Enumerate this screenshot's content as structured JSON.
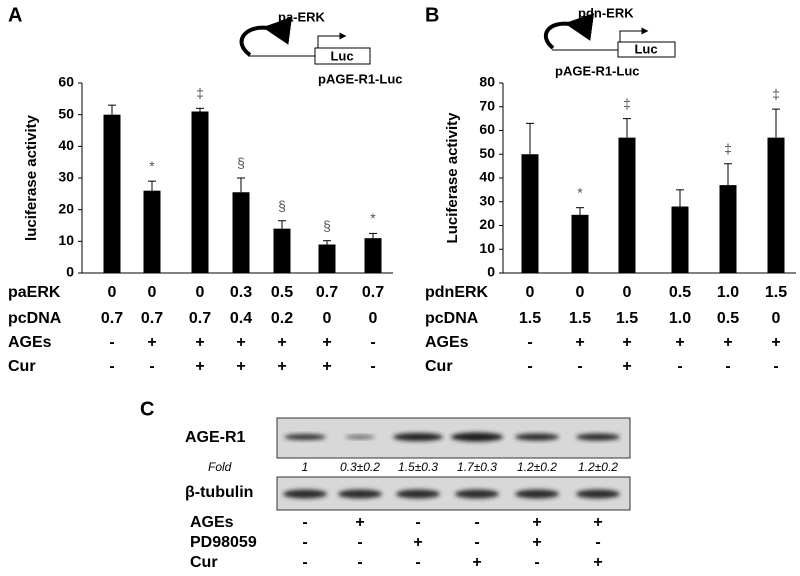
{
  "chart_data": [
    {
      "type": "bar",
      "panel": "A",
      "construct": "pa-ERK",
      "reporter": "Luc",
      "plasmid": "pAGE-R1-Luc",
      "ylabel": "luciferase activity",
      "color": "#000000",
      "series": [
        {
          "values": [
            50,
            26,
            51,
            25.5,
            14,
            9,
            11
          ],
          "errors": [
            3,
            3,
            1,
            4.5,
            2.5,
            1.2,
            1.5
          ]
        }
      ],
      "annotations": [
        null,
        "*",
        "‡",
        "§",
        "§",
        "§",
        "*"
      ],
      "ylim": [
        0,
        60
      ],
      "yticks": [
        0,
        10,
        20,
        30,
        40,
        50,
        60
      ],
      "conditions": [
        {
          "label": "paERK",
          "values": [
            "0",
            "0",
            "0",
            "0.3",
            "0.5",
            "0.7",
            "0.7"
          ]
        },
        {
          "label": "pcDNA",
          "values": [
            "0.7",
            "0.7",
            "0.7",
            "0.4",
            "0.2",
            "0",
            "0"
          ]
        },
        {
          "label": "AGEs",
          "values": [
            "-",
            "+",
            "+",
            "+",
            "+",
            "+",
            "-"
          ]
        },
        {
          "label": "Cur",
          "values": [
            "-",
            "-",
            "+",
            "+",
            "+",
            "+",
            "-"
          ]
        }
      ]
    },
    {
      "type": "bar",
      "panel": "B",
      "construct": "pdn-ERK",
      "reporter": "Luc",
      "plasmid": "pAGE-R1-Luc",
      "ylabel": "Luciferase activity",
      "color": "#000000",
      "series": [
        {
          "values": [
            50,
            24.5,
            57,
            28,
            37,
            57
          ],
          "errors": [
            13,
            3,
            8,
            7,
            9,
            12
          ]
        }
      ],
      "annotations": [
        null,
        "*",
        "‡",
        null,
        "‡",
        "‡"
      ],
      "ylim": [
        0,
        80
      ],
      "yticks": [
        0,
        10,
        20,
        30,
        40,
        50,
        60,
        70,
        80
      ],
      "conditions": [
        {
          "label": "pdnERK",
          "values": [
            "0",
            "0",
            "0",
            "0.5",
            "1.0",
            "1.5"
          ]
        },
        {
          "label": "pcDNA",
          "values": [
            "1.5",
            "1.5",
            "1.5",
            "1.0",
            "0.5",
            "0"
          ]
        },
        {
          "label": "AGEs",
          "values": [
            "-",
            "+",
            "+",
            "+",
            "+",
            "+"
          ]
        },
        {
          "label": "Cur",
          "values": [
            "-",
            "-",
            "+",
            "-",
            "-",
            "-"
          ]
        }
      ]
    }
  ],
  "blot": {
    "panel": "C",
    "rows": [
      "AGE-R1",
      "β-tubulin"
    ],
    "fold_label": "Fold",
    "fold": [
      "1",
      "0.3±0.2",
      "1.5±0.3",
      "1.7±0.3",
      "1.2±0.2",
      "1.2±0.2"
    ],
    "conditions": [
      {
        "label": "AGEs",
        "values": [
          "-",
          "+",
          "-",
          "-",
          "+",
          "+"
        ]
      },
      {
        "label": "PD98059",
        "values": [
          "-",
          "-",
          "+",
          "-",
          "+",
          "-"
        ]
      },
      {
        "label": "Cur",
        "values": [
          "-",
          "-",
          "-",
          "+",
          "-",
          "+"
        ]
      }
    ]
  }
}
